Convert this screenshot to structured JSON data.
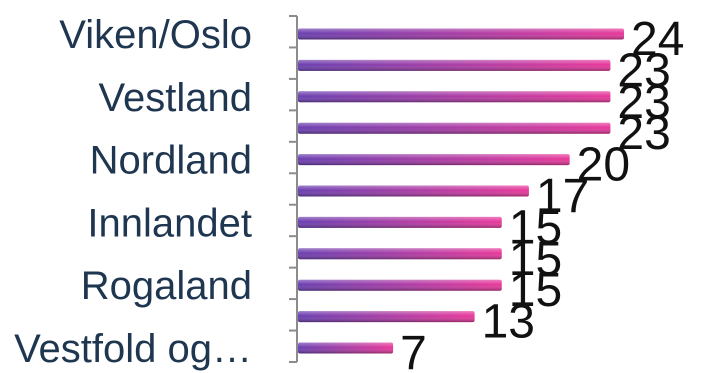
{
  "chart_data": {
    "type": "bar",
    "orientation": "horizontal",
    "categories": [
      "Viken/Oslo",
      "",
      "Vestland",
      "",
      "Nordland",
      "",
      "Innlandet",
      "",
      "Rogaland",
      "",
      "Vestfold og…"
    ],
    "values": [
      24,
      23,
      23,
      23,
      20,
      17,
      15,
      15,
      15,
      13,
      7
    ],
    "title": "",
    "xlabel": "",
    "ylabel": "",
    "xlim": [
      0,
      24
    ],
    "grid": false,
    "legend": "none",
    "colors": {
      "bar_start": "#6a3fb0",
      "bar_end": "#e8389a",
      "label": "#1f3650"
    }
  }
}
